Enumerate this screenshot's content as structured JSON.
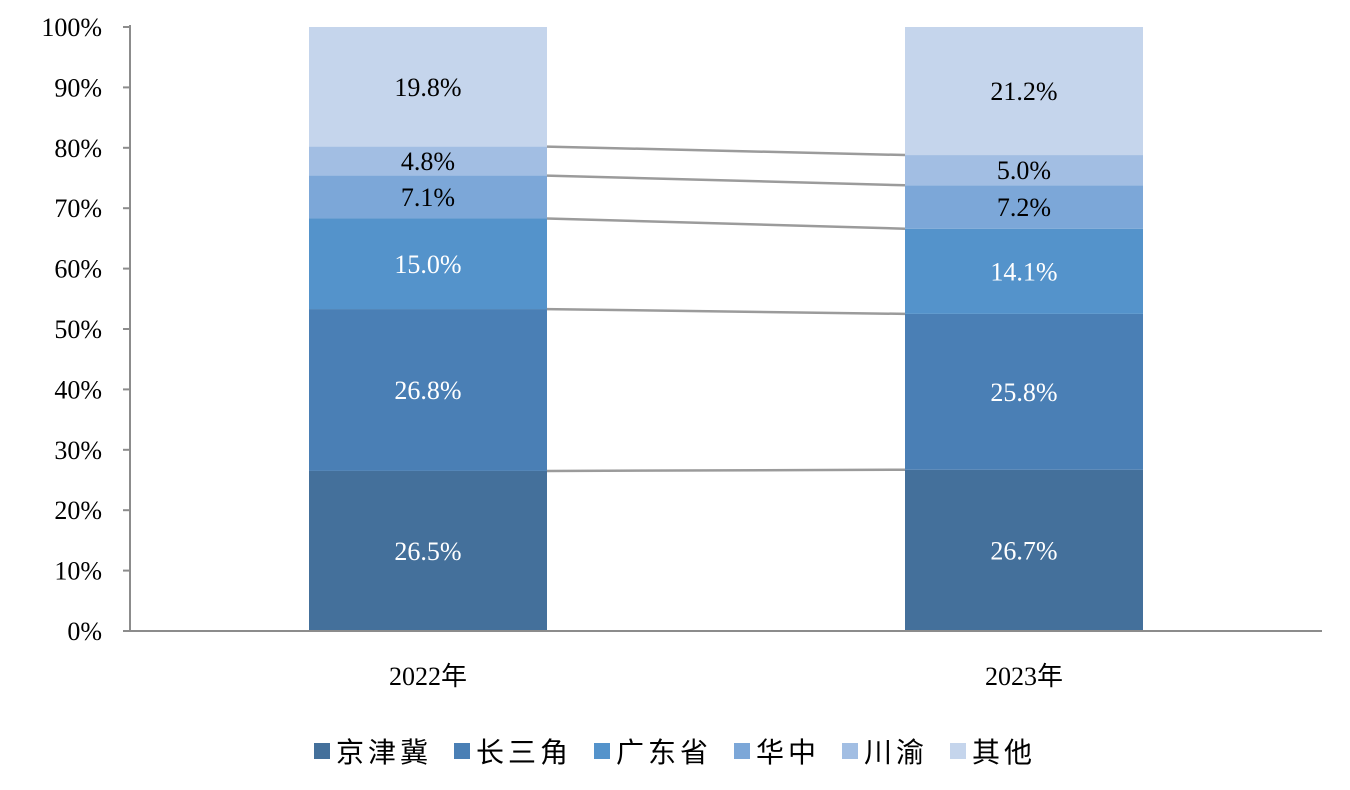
{
  "chart_data": {
    "type": "bar",
    "stacked": true,
    "categories": [
      "2022年",
      "2023年"
    ],
    "series": [
      {
        "name": "京津冀",
        "values": [
          26.5,
          26.7
        ],
        "labels": [
          "26.5%",
          "26.7%"
        ],
        "color": "#44709b",
        "label_color": "#ffffff"
      },
      {
        "name": "长三角",
        "values": [
          26.8,
          25.8
        ],
        "labels": [
          "26.8%",
          "25.8%"
        ],
        "color": "#4a7fb5",
        "label_color": "#ffffff"
      },
      {
        "name": "广东省",
        "values": [
          15.0,
          14.1
        ],
        "labels": [
          "15.0%",
          "14.1%"
        ],
        "color": "#5493cb",
        "label_color": "#ffffff"
      },
      {
        "name": "华中",
        "values": [
          7.1,
          7.2
        ],
        "labels": [
          "7.1%",
          "7.2%"
        ],
        "color": "#7ca7d8",
        "label_color": "#000000"
      },
      {
        "name": "川渝",
        "values": [
          4.8,
          5.0
        ],
        "labels": [
          "4.8%",
          "5.0%"
        ],
        "color": "#a2bee3",
        "label_color": "#000000"
      },
      {
        "name": "其他",
        "values": [
          19.8,
          21.2
        ],
        "labels": [
          "19.8%",
          "21.2%"
        ],
        "color": "#c5d5ec",
        "label_color": "#000000"
      }
    ],
    "y_ticks": [
      "0%",
      "10%",
      "20%",
      "30%",
      "40%",
      "50%",
      "60%",
      "70%",
      "80%",
      "90%",
      "100%"
    ],
    "ylim": [
      0,
      100
    ],
    "series_lines": true,
    "legend_position": "bottom",
    "grid": false
  }
}
